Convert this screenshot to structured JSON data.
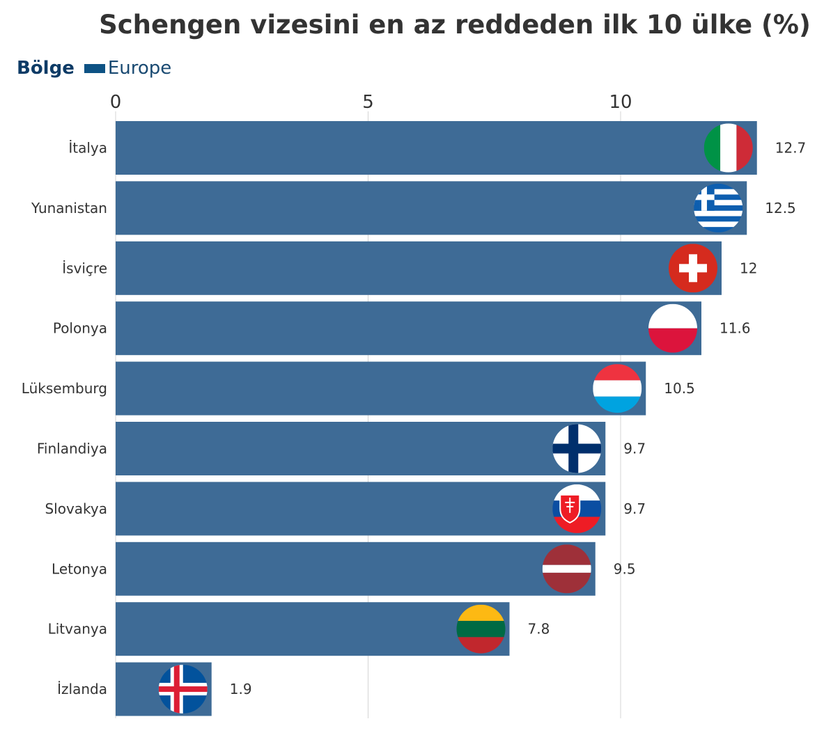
{
  "chart_data": {
    "type": "bar",
    "orientation": "horizontal",
    "title": "Schengen vizesini en az reddeden ilk 10 ülke (%)",
    "legend": {
      "title": "Bölge",
      "entries": [
        {
          "name": "Europe",
          "color": "#0d5284"
        }
      ],
      "placement": "top-left"
    },
    "categories": [
      "İtalya",
      "Yunanistan",
      "İsviçre",
      "Polonya",
      "Lüksemburg",
      "Finlandiya",
      "Slovakya",
      "Letonya",
      "Litvanya",
      "İzlanda"
    ],
    "series": [
      {
        "name": "Europe",
        "values": [
          12.7,
          12.5,
          12,
          11.6,
          10.5,
          9.7,
          9.7,
          9.5,
          7.8,
          1.9
        ],
        "labels": [
          "12.7",
          "12.5",
          "12",
          "11.6",
          "10.5",
          "9.7",
          "9.7",
          "9.5",
          "7.8",
          "1.9"
        ]
      }
    ],
    "flags": [
      "italy-flag-icon",
      "greece-flag-icon",
      "switzerland-flag-icon",
      "poland-flag-icon",
      "luxembourg-flag-icon",
      "finland-flag-icon",
      "slovakia-flag-icon",
      "latvia-flag-icon",
      "lithuania-flag-icon",
      "iceland-flag-icon"
    ],
    "x_ticks": [
      0,
      5,
      10
    ],
    "xlim": [
      0,
      12.7
    ],
    "grid": true,
    "bar_color": "#3e6b96",
    "grid_color": "#d4d4d4"
  }
}
